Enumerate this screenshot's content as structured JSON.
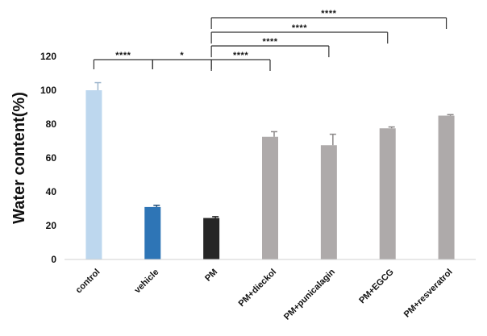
{
  "chart_data": {
    "type": "bar",
    "title": "",
    "xlabel": "",
    "ylabel": "Water content(%)",
    "ylim": [
      0,
      120
    ],
    "yticks": [
      0,
      20,
      40,
      60,
      80,
      100,
      120
    ],
    "categories": [
      "control",
      "vehicle",
      "PM",
      "PM+dieckol",
      "PM+punicalagin",
      "PM+EGCG",
      "PM+resveratrol"
    ],
    "values": [
      100,
      31,
      24.5,
      72.5,
      67.5,
      77.5,
      85
    ],
    "errors": [
      4.5,
      1,
      0.8,
      3,
      6.5,
      0.8,
      0.6
    ],
    "bar_colors": [
      "#bdd7ee",
      "#2e75b6",
      "#262626",
      "#aeaaaa",
      "#aeaaaa",
      "#aeaaaa",
      "#aeaaaa"
    ],
    "significance": [
      {
        "from": 0,
        "to": 1,
        "label": "****"
      },
      {
        "from": 1,
        "to": 2,
        "label": "*"
      },
      {
        "from": 2,
        "to": 3,
        "label": "****"
      },
      {
        "from": 2,
        "to": 4,
        "label": "****"
      },
      {
        "from": 2,
        "to": 5,
        "label": "****"
      },
      {
        "from": 2,
        "to": 6,
        "label": "****"
      }
    ]
  }
}
